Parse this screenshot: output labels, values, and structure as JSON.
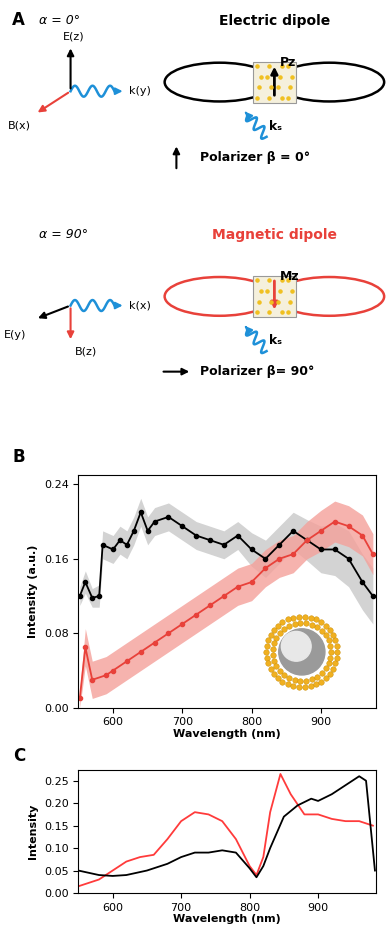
{
  "panel_a": {
    "label": "A",
    "schemes": [
      {
        "angle": "α = 0°",
        "title": "Electric dipole",
        "E": "E(z)",
        "k": "k(y)",
        "B": "B(x)",
        "dipole": "Pz",
        "ks": "kₛ",
        "polarizer": "Polarizer β = 0°",
        "color": "#000000"
      },
      {
        "angle": "α = 90°",
        "title": "Magnetic dipole",
        "E": "E(y)",
        "k": "k(x)",
        "B": "B(z)",
        "dipole": "Mz",
        "ks": "kₛ",
        "polarizer": "Polarizer β= 90°",
        "color": "#e8413a"
      }
    ]
  },
  "chart_data": [
    {
      "type": "line",
      "panel": "B",
      "x_label": "Wavelength (nm)",
      "y_label": "Intensity (a.u.)",
      "xlim": [
        550,
        980
      ],
      "xticks": [
        600,
        700,
        800,
        900
      ],
      "ylim": [
        0,
        0.25
      ],
      "yticks": [
        {
          "value": 0,
          "label": "0.00"
        },
        0.08,
        0.16,
        0.24
      ],
      "series": [
        {
          "color": "#000000",
          "band_color": "#c8c8c8",
          "marker": "o",
          "x": [
            552,
            560,
            570,
            580,
            585,
            600,
            610,
            620,
            630,
            640,
            650,
            660,
            680,
            700,
            720,
            740,
            760,
            780,
            800,
            820,
            840,
            860,
            880,
            900,
            920,
            940,
            960,
            975
          ],
          "values": [
            0.12,
            0.135,
            0.118,
            0.12,
            0.175,
            0.17,
            0.18,
            0.175,
            0.19,
            0.21,
            0.19,
            0.2,
            0.205,
            0.195,
            0.185,
            0.18,
            0.175,
            0.185,
            0.17,
            0.16,
            0.175,
            0.19,
            0.18,
            0.17,
            0.17,
            0.16,
            0.135,
            0.12
          ],
          "error": [
            0.01,
            0.012,
            0.01,
            0.012,
            0.015,
            0.015,
            0.015,
            0.015,
            0.015,
            0.015,
            0.015,
            0.015,
            0.015,
            0.015,
            0.015,
            0.015,
            0.015,
            0.015,
            0.018,
            0.02,
            0.02,
            0.02,
            0.022,
            0.025,
            0.028,
            0.03,
            0.03,
            0.03
          ]
        },
        {
          "color": "#e8413a",
          "band_color": "#f4a09a",
          "marker": "o",
          "x": [
            552,
            560,
            570,
            590,
            600,
            620,
            640,
            660,
            680,
            700,
            720,
            740,
            760,
            780,
            800,
            820,
            840,
            860,
            880,
            900,
            920,
            940,
            960,
            975
          ],
          "values": [
            0.01,
            0.065,
            0.03,
            0.035,
            0.04,
            0.05,
            0.06,
            0.07,
            0.08,
            0.09,
            0.1,
            0.11,
            0.12,
            0.13,
            0.135,
            0.15,
            0.16,
            0.165,
            0.18,
            0.19,
            0.2,
            0.195,
            0.185,
            0.165
          ],
          "error": [
            0.01,
            0.02,
            0.02,
            0.02,
            0.02,
            0.02,
            0.02,
            0.02,
            0.02,
            0.02,
            0.02,
            0.02,
            0.02,
            0.02,
            0.02,
            0.02,
            0.02,
            0.02,
            0.02,
            0.022,
            0.022,
            0.022,
            0.022,
            0.022
          ]
        }
      ]
    },
    {
      "type": "line",
      "panel": "C",
      "x_label": "Wavelength (nm)",
      "y_label": "Intensity",
      "xlim": [
        550,
        985
      ],
      "xticks": [
        600,
        700,
        800,
        900
      ],
      "ylim": [
        0,
        0.275
      ],
      "yticks": [
        {
          "value": 0,
          "label": "0.00"
        },
        0.05,
        {
          "value": 0.1,
          "label": "0.10"
        },
        0.15,
        {
          "value": 0.2,
          "label": "0.20"
        },
        0.25
      ],
      "series": [
        {
          "color": "#ff3b3b",
          "x": [
            550,
            580,
            600,
            620,
            640,
            660,
            680,
            700,
            720,
            740,
            760,
            780,
            800,
            810,
            820,
            830,
            845,
            860,
            880,
            900,
            920,
            940,
            960,
            980
          ],
          "values": [
            0.015,
            0.03,
            0.05,
            0.07,
            0.08,
            0.085,
            0.12,
            0.16,
            0.18,
            0.175,
            0.16,
            0.12,
            0.06,
            0.04,
            0.08,
            0.18,
            0.265,
            0.22,
            0.175,
            0.175,
            0.165,
            0.16,
            0.16,
            0.15
          ]
        },
        {
          "color": "#000000",
          "x": [
            550,
            580,
            600,
            620,
            650,
            680,
            700,
            720,
            740,
            760,
            780,
            800,
            810,
            820,
            830,
            850,
            870,
            890,
            900,
            920,
            940,
            960,
            970,
            983
          ],
          "values": [
            0.05,
            0.04,
            0.038,
            0.04,
            0.05,
            0.065,
            0.08,
            0.09,
            0.09,
            0.095,
            0.09,
            0.055,
            0.035,
            0.06,
            0.1,
            0.17,
            0.195,
            0.21,
            0.205,
            0.22,
            0.24,
            0.26,
            0.25,
            0.05
          ]
        }
      ]
    }
  ]
}
